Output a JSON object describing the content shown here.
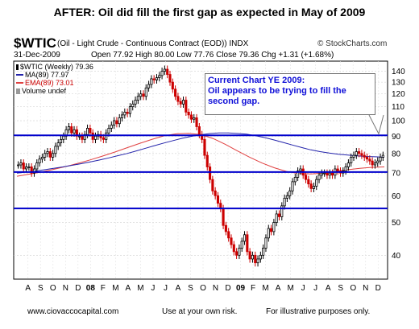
{
  "headline": "AFTER:  Oil did fill the first gap as expected in May of 2009",
  "header": {
    "symbol": "$WTIC",
    "description": "(Oil - Light Crude - Continuous Contract (EOD))  INDX",
    "credit": "© StockCharts.com",
    "date": "31-Dec-2009",
    "ohlc": "Open 77.92  High 80.00  Low 77.76  Close 79.36  Chg +1.31 (+1.68%)",
    "change": "▲"
  },
  "legend": {
    "line1": "$WTIC (Weekly) 79.36",
    "line2": "MA(89) 77.97",
    "line3": "EMA(89) 73.01",
    "line4": "Volume undef"
  },
  "callout": {
    "line1": "Current Chart YE 2009:",
    "line2": "Oil appears to be trying to fill the second gap."
  },
  "footer": {
    "left": "www.ciovaccocapital.com",
    "middle": "Use at your own risk.",
    "right": "For illustrative purposes only."
  },
  "colors": {
    "price_up": "#000000",
    "price_down": "#cc0000",
    "ma": "#2222aa",
    "ema": "#e04040",
    "gap_lines": "#0000cc",
    "callout_text": "#1010d8"
  },
  "chart_data": {
    "type": "line",
    "title": "$WTIC (Oil - Light Crude - Continuous Contract (EOD))",
    "ylim": [
      34,
      150
    ],
    "y_scale": "log",
    "grid": true,
    "yticks": [
      40,
      50,
      60,
      70,
      80,
      90,
      100,
      110,
      120,
      130,
      140
    ],
    "month_labels": [
      "A",
      "S",
      "O",
      "N",
      "D",
      "08",
      "F",
      "M",
      "A",
      "M",
      "J",
      "J",
      "A",
      "S",
      "O",
      "N",
      "D",
      "09",
      "F",
      "M",
      "A",
      "M",
      "J",
      "J",
      "A",
      "S",
      "O",
      "N",
      "D"
    ],
    "horizontal_lines": [
      90.5,
      70.5,
      55
    ],
    "series": [
      {
        "name": "$WTIC (Weekly) 79.36",
        "values": [
          74,
          75,
          72,
          73,
          73,
          70,
          72,
          75,
          77,
          78,
          80,
          81,
          78,
          80,
          84,
          86,
          88,
          90,
          94,
          96,
          92,
          94,
          90,
          90,
          88,
          91,
          95,
          92,
          88,
          90,
          91,
          89,
          88,
          92,
          95,
          97,
          100,
          98,
          102,
          104,
          106,
          105,
          110,
          112,
          115,
          118,
          120,
          118,
          125,
          128,
          133,
          132,
          134,
          136,
          140,
          142,
          137,
          130,
          124,
          118,
          114,
          112,
          115,
          106,
          104,
          101,
          102,
          96,
          91,
          88,
          79,
          73,
          67,
          62,
          60,
          57,
          55,
          49,
          47,
          45,
          43,
          41,
          40,
          42,
          44,
          46,
          41,
          39,
          40,
          38,
          39,
          40,
          42,
          45,
          48,
          47,
          50,
          53,
          52,
          56,
          59,
          60,
          62,
          66,
          68,
          71,
          72,
          69,
          67,
          65,
          63,
          64,
          67,
          69,
          70,
          70,
          69,
          70,
          69,
          72,
          71,
          70,
          71,
          73,
          75,
          78,
          79,
          81,
          80,
          79,
          78,
          77,
          76,
          74,
          75,
          76,
          78,
          79
        ]
      },
      {
        "name": "MA(89) 77.97",
        "values": [
          70,
          70.5,
          71,
          71.6,
          72.3,
          73,
          73.8,
          74.6,
          75.5,
          76.5,
          77.6,
          78.8,
          80,
          81.4,
          82.9,
          84.4,
          85.9,
          87.3,
          88.7,
          89.9,
          90.9,
          91.6,
          92,
          92,
          91.7,
          91.2,
          90.3,
          89.1,
          87.7,
          86.2,
          84.7,
          83.3,
          82,
          81,
          80.2,
          79.6,
          79.1,
          78.7,
          78.4,
          78.2,
          78
        ]
      },
      {
        "name": "EMA(89) 73.01",
        "values": [
          68.5,
          69.5,
          70.5,
          71.8,
          73.2,
          74.8,
          76.6,
          78.6,
          80.8,
          83.2,
          85.6,
          88,
          90.2,
          91.4,
          91.8,
          91,
          88.6,
          85.2,
          81.4,
          78,
          75,
          72.6,
          70.8,
          69.8,
          69.6,
          70,
          70.8,
          71.6,
          72.3,
          72.8,
          73
        ]
      }
    ]
  }
}
